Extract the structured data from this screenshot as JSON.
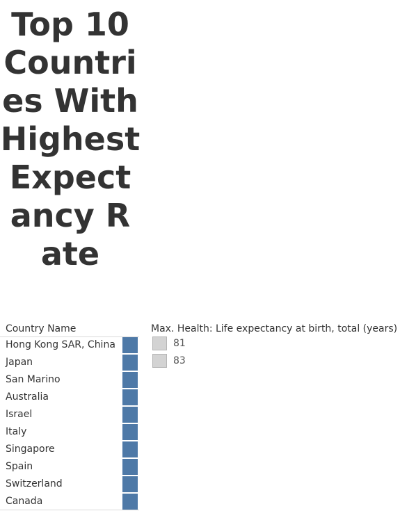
{
  "chart_data": {
    "type": "table",
    "title": "Top 10 Countries With Highest Expectancy Rate",
    "columns": [
      "Country Name",
      "Max. Health: Life expectancy at birth, total (years)"
    ],
    "categories": [
      "Hong Kong SAR, China",
      "Japan",
      "San Marino",
      "Australia",
      "Israel",
      "Italy",
      "Singapore",
      "Spain",
      "Switzerland",
      "Canada"
    ],
    "legend": {
      "title": "Max. Health: Life expectancy at birth, total (years)",
      "items": [
        "81",
        "83"
      ],
      "placement": "top-right"
    },
    "bar_color": "#4e79a7",
    "legend_swatch_color": "#d3d3d3"
  }
}
